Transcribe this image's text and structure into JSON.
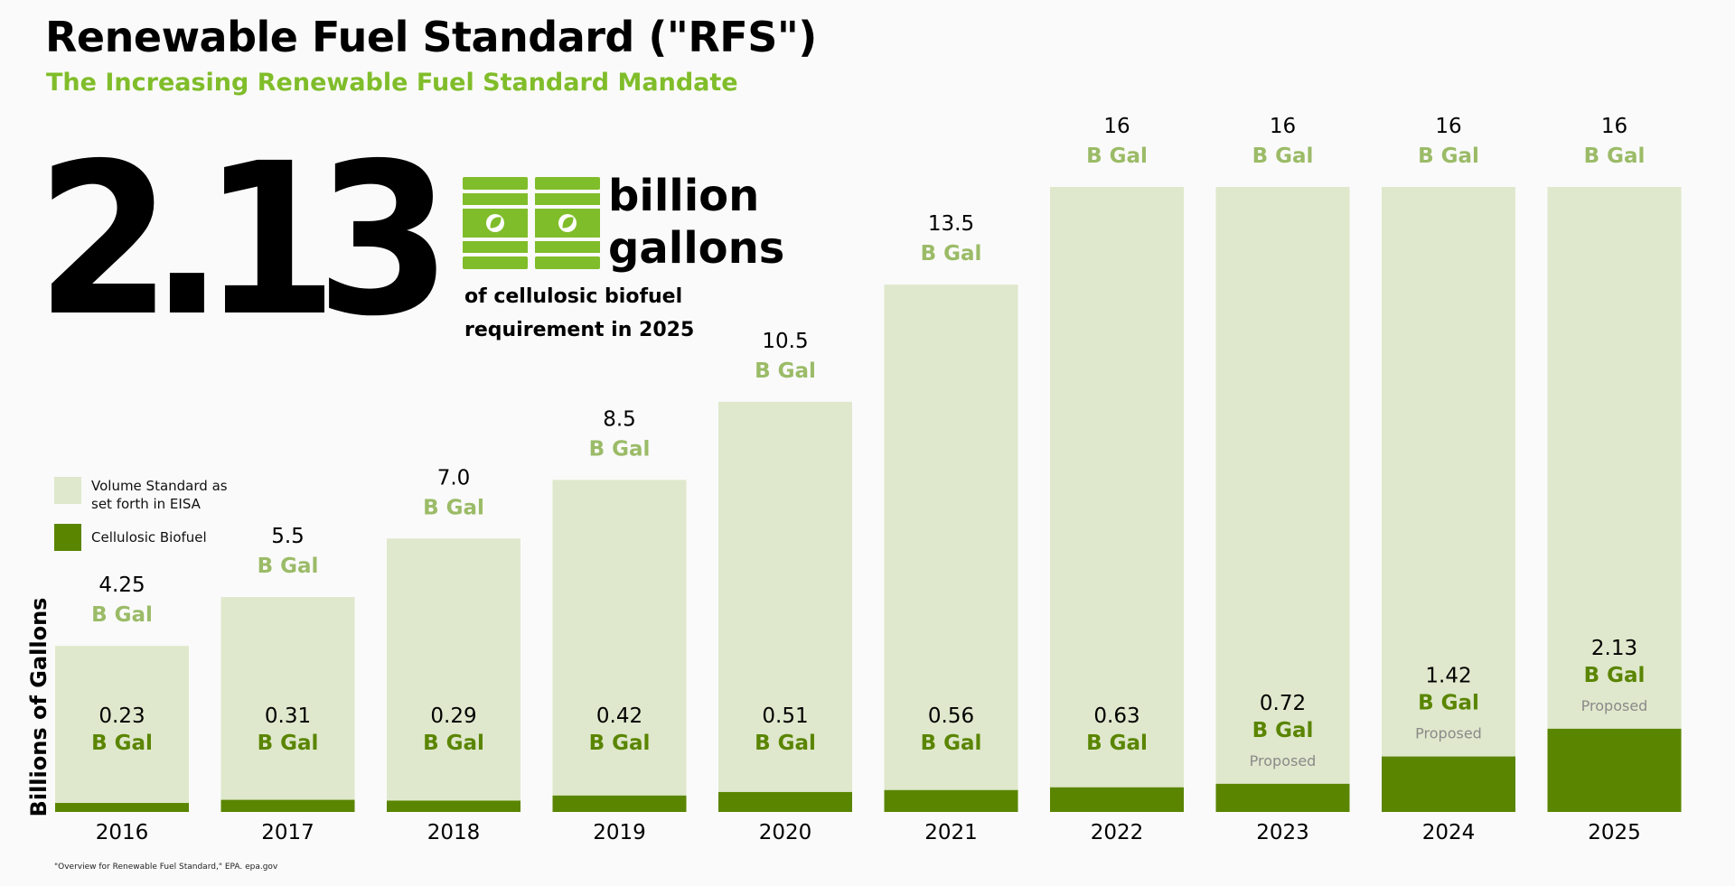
{
  "header": {
    "title": "Renewable Fuel Standard (\"RFS\")",
    "subtitle": "The Increasing Renewable Fuel Standard Mandate"
  },
  "highlight": {
    "number": "2.13",
    "unit_line1": "billion",
    "unit_line2": "gallons",
    "desc_line1": "of cellulosic biofuel",
    "desc_line2": "requirement in 2025"
  },
  "legend": {
    "volume_label": "Volume Standard as set forth in EISA",
    "cellulosic_label": "Cellulosic Biofuel"
  },
  "source": "\"Overview for Renewable Fuel Standard,\" EPA. epa.gov",
  "colors": {
    "accent": "#80bd2a",
    "volume_bar": "#dfe8cc",
    "volume_label": "#9bbb67",
    "cellulosic_bar": "#5a8500",
    "cellulosic_label": "#5a8500",
    "proposed_label": "#8a8a8a"
  },
  "chart_data": {
    "type": "bar",
    "title": "The Increasing Renewable Fuel Standard Mandate",
    "ylabel": "Billions of Gallons",
    "xlabel": "",
    "ylim": [
      0,
      16
    ],
    "unit_label": "B Gal",
    "proposed_label": "Proposed",
    "categories": [
      "2016",
      "2017",
      "2018",
      "2019",
      "2020",
      "2021",
      "2022",
      "2023",
      "2024",
      "2025"
    ],
    "series": [
      {
        "name": "Volume Standard as set forth in EISA",
        "values": [
          4.25,
          5.5,
          7.0,
          8.5,
          10.5,
          13.5,
          16,
          16,
          16,
          16
        ],
        "labels": [
          "4.25",
          "5.5",
          "7.0",
          "8.5",
          "10.5",
          "13.5",
          "16",
          "16",
          "16",
          "16"
        ]
      },
      {
        "name": "Cellulosic Biofuel",
        "values": [
          0.23,
          0.31,
          0.29,
          0.42,
          0.51,
          0.56,
          0.63,
          0.72,
          1.42,
          2.13
        ],
        "labels": [
          "0.23",
          "0.31",
          "0.29",
          "0.42",
          "0.51",
          "0.56",
          "0.63",
          "0.72",
          "1.42",
          "2.13"
        ],
        "proposed": [
          false,
          false,
          false,
          false,
          false,
          false,
          false,
          true,
          true,
          true
        ]
      }
    ]
  }
}
